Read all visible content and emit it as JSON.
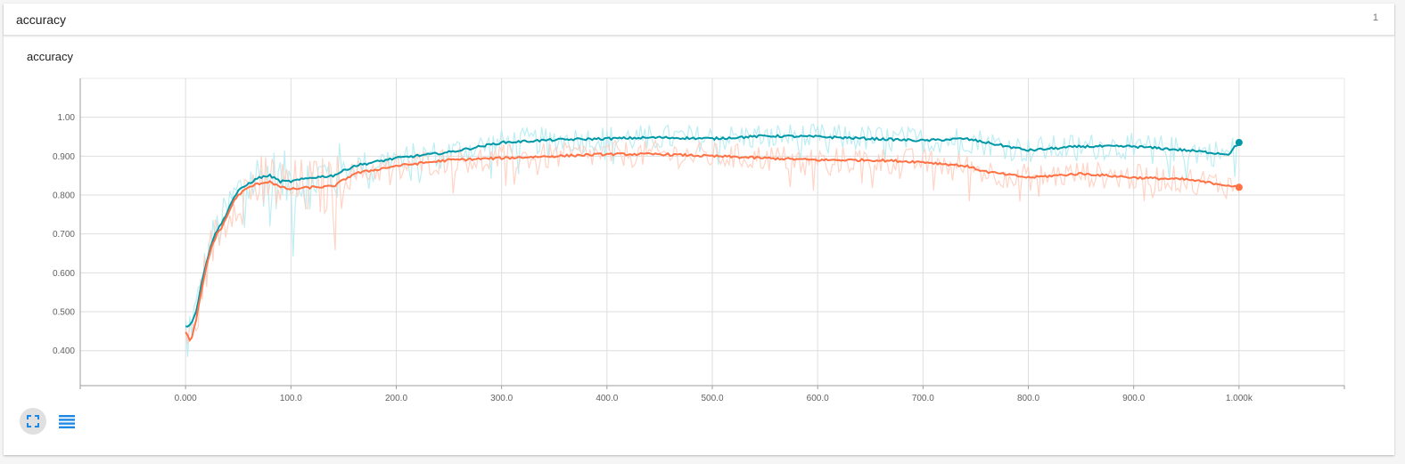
{
  "card": {
    "title": "accuracy",
    "count": "1"
  },
  "chart_data": {
    "type": "line",
    "title": "accuracy",
    "xlabel": "",
    "ylabel": "",
    "xlim": [
      -100,
      1100
    ],
    "ylim": [
      0.31,
      1.1
    ],
    "x_ticks": [
      0,
      100,
      200,
      300,
      400,
      500,
      600,
      700,
      800,
      900,
      1000
    ],
    "x_tick_labels": [
      "0.000",
      "100.0",
      "200.0",
      "300.0",
      "400.0",
      "500.0",
      "600.0",
      "700.0",
      "800.0",
      "900.0",
      "1.000k"
    ],
    "y_ticks": [
      0.4,
      0.5,
      0.6,
      0.7,
      0.8,
      0.9,
      1.0
    ],
    "y_tick_labels": [
      "0.400",
      "0.500",
      "0.600",
      "0.700",
      "0.800",
      "0.900",
      "1.00"
    ],
    "grid": true,
    "series": [
      {
        "color": "#0097a7",
        "raw_color": "#b2ebf2",
        "x": [
          0,
          5,
          10,
          15,
          20,
          25,
          30,
          35,
          40,
          45,
          50,
          60,
          70,
          80,
          90,
          100,
          120,
          140,
          160,
          200,
          250,
          300,
          350,
          400,
          450,
          500,
          550,
          600,
          650,
          700,
          740,
          760,
          800,
          850,
          900,
          950,
          990,
          1000
        ],
        "y": [
          0.46,
          0.47,
          0.5,
          0.57,
          0.63,
          0.68,
          0.71,
          0.73,
          0.76,
          0.79,
          0.81,
          0.83,
          0.845,
          0.85,
          0.835,
          0.835,
          0.845,
          0.85,
          0.875,
          0.895,
          0.91,
          0.935,
          0.942,
          0.945,
          0.948,
          0.945,
          0.952,
          0.95,
          0.945,
          0.94,
          0.945,
          0.935,
          0.915,
          0.925,
          0.925,
          0.915,
          0.905,
          0.935
        ]
      },
      {
        "color": "#ff7043",
        "raw_color": "#ffccbc",
        "x": [
          0,
          5,
          10,
          15,
          20,
          25,
          30,
          35,
          40,
          45,
          50,
          60,
          70,
          80,
          90,
          100,
          120,
          140,
          160,
          200,
          250,
          300,
          350,
          400,
          450,
          500,
          550,
          600,
          650,
          700,
          740,
          760,
          800,
          850,
          900,
          950,
          990,
          1000
        ],
        "y": [
          0.45,
          0.42,
          0.48,
          0.55,
          0.62,
          0.67,
          0.7,
          0.72,
          0.75,
          0.78,
          0.8,
          0.82,
          0.83,
          0.835,
          0.82,
          0.815,
          0.82,
          0.822,
          0.855,
          0.875,
          0.89,
          0.895,
          0.9,
          0.905,
          0.905,
          0.9,
          0.895,
          0.89,
          0.89,
          0.885,
          0.875,
          0.86,
          0.845,
          0.855,
          0.845,
          0.84,
          0.825,
          0.82
        ]
      }
    ]
  },
  "icons": {
    "fit": "fit-to-data-icon",
    "list": "list-icon"
  }
}
